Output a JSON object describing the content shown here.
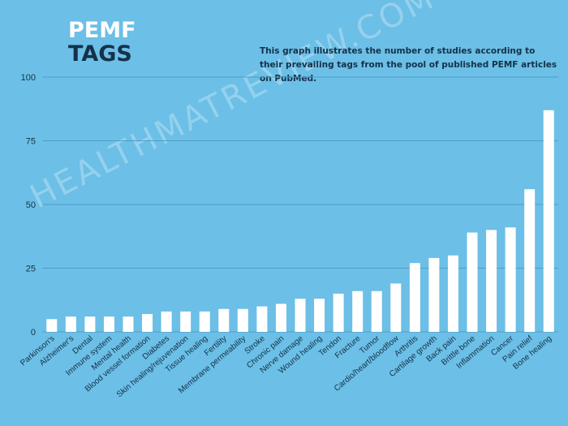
{
  "header": {
    "title_line1": "PEMF",
    "title_line2": "TAGS",
    "subtitle": "This graph illustrates the number of studies according to their prevailing tags from the pool of published PEMF articles on PubMed."
  },
  "watermark": "HEALTHMATREVIEW.COM",
  "colors": {
    "background": "#6cbfe6",
    "bar": "#ffffff",
    "grid": "#4f9ec7",
    "axis_text": "#14324a",
    "title_dark": "#14324a"
  },
  "chart_data": {
    "type": "bar",
    "title": "PEMF TAGS",
    "xlabel": "",
    "ylabel": "",
    "ylim": [
      0,
      100
    ],
    "yticks": [
      0,
      25,
      50,
      75,
      100
    ],
    "grid": true,
    "categories": [
      "Parkinson's",
      "Alzheimer's",
      "Dental",
      "Immune system",
      "Mental health",
      "Blood vessel formation",
      "Diabetes",
      "Skin healing/rejuvenation",
      "Tissue healing",
      "Fertility",
      "Membrane permeability",
      "Stroke",
      "Chronic pain",
      "Nerve damage",
      "Wound healing",
      "Tendon",
      "Fracture",
      "Tumor",
      "Cardio/heart/bloodflow",
      "Arthritis",
      "Cartilage growth",
      "Back pain",
      "Brittle bone",
      "Inflammation",
      "Cancer",
      "Pain relief",
      "Bone healing"
    ],
    "values": [
      5,
      6,
      6,
      6,
      6,
      7,
      8,
      8,
      8,
      9,
      9,
      10,
      11,
      13,
      13,
      15,
      16,
      16,
      19,
      27,
      29,
      30,
      39,
      40,
      41,
      56,
      87
    ]
  }
}
